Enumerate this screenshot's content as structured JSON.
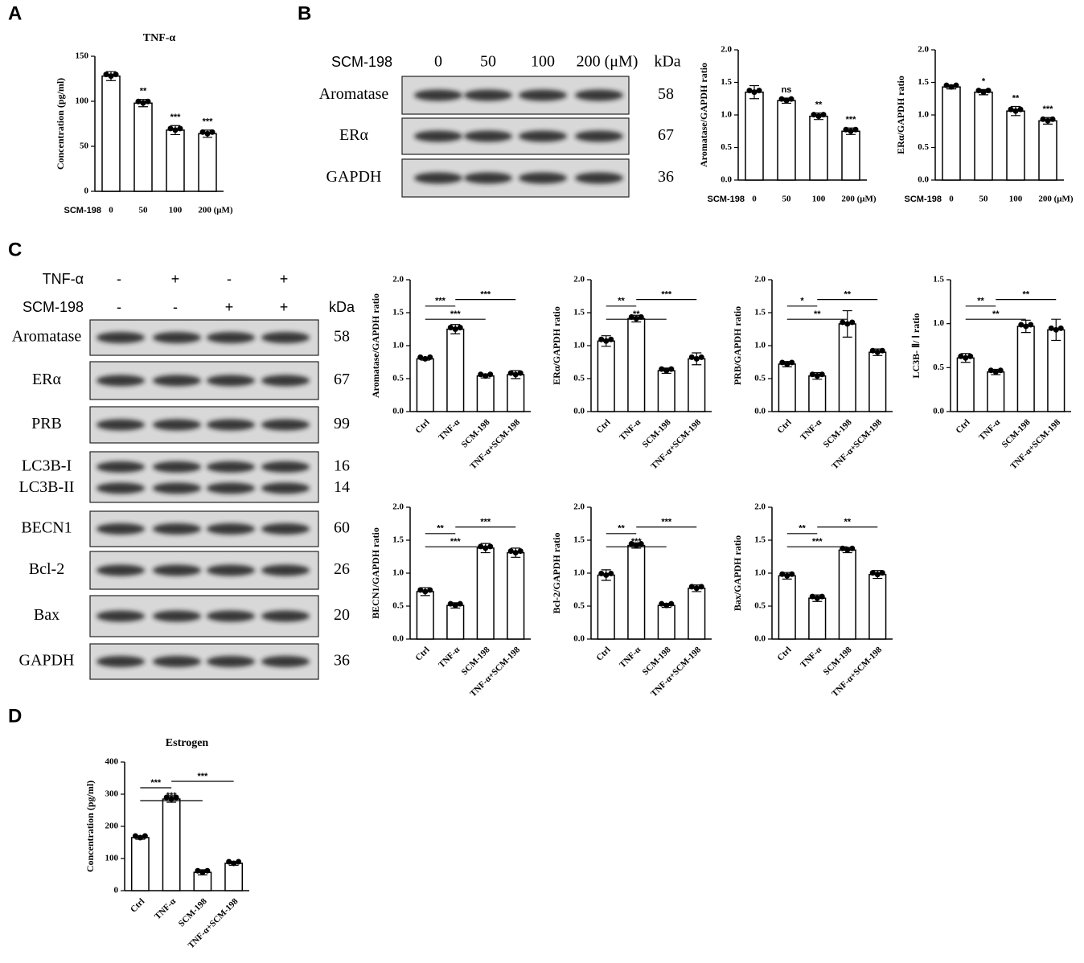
{
  "panels": [
    "A",
    "B",
    "C",
    "D"
  ],
  "blot_b": {
    "header_label": "SCM-198",
    "lanes": [
      "0",
      "50",
      "100",
      "200 (μM)"
    ],
    "kda_label": "kDa",
    "rows": [
      {
        "proteins": [
          "Aromatase"
        ],
        "kda": [
          58
        ]
      },
      {
        "proteins": [
          "ERα"
        ],
        "kda": [
          67
        ]
      },
      {
        "proteins": [
          "GAPDH"
        ],
        "kda": [
          36
        ]
      }
    ]
  },
  "blot_c": {
    "treatments": [
      {
        "name": "TNF-α",
        "signs": [
          "-",
          "+",
          "-",
          "+"
        ]
      },
      {
        "name": "SCM-198",
        "signs": [
          "-",
          "-",
          "+",
          "+"
        ]
      }
    ],
    "kda_label": "kDa",
    "rows": [
      {
        "proteins": [
          "Aromatase"
        ],
        "kda": [
          58
        ]
      },
      {
        "proteins": [
          "ERα"
        ],
        "kda": [
          67
        ]
      },
      {
        "proteins": [
          "PRB"
        ],
        "kda": [
          99
        ]
      },
      {
        "proteins": [
          "LC3B-I",
          "LC3B-II"
        ],
        "kda": [
          16,
          14
        ]
      },
      {
        "proteins": [
          "BECN1"
        ],
        "kda": [
          60
        ]
      },
      {
        "proteins": [
          "Bcl-2"
        ],
        "kda": [
          26
        ]
      },
      {
        "proteins": [
          "Bax"
        ],
        "kda": [
          20
        ]
      },
      {
        "proteins": [
          "GAPDH"
        ],
        "kda": [
          36
        ]
      }
    ]
  },
  "chart_data": [
    {
      "type": "bar",
      "title": "TNF-α",
      "ylabel": "Concentration (pg/ml)",
      "xlabel": "SCM-198",
      "categories": [
        "0",
        "50",
        "100",
        "200 (μM)"
      ],
      "values": [
        128,
        98,
        68,
        64
      ],
      "errors": [
        5,
        4,
        5,
        4
      ],
      "color": "#ffffff",
      "ylim": [
        0,
        150
      ],
      "yticks": [
        0,
        50,
        100,
        150
      ],
      "annotations": [
        null,
        "**",
        "***",
        "***"
      ]
    },
    {
      "type": "bar",
      "ylabel": "Aromatase/GAPDH ratio",
      "xlabel": "SCM-198",
      "categories": [
        "0",
        "50",
        "100",
        "200 (μM)"
      ],
      "values": [
        1.35,
        1.22,
        0.98,
        0.75
      ],
      "errors": [
        0.1,
        0.04,
        0.05,
        0.05
      ],
      "color": "#ffffff",
      "ylim": [
        0,
        2
      ],
      "yticks": [
        {
          "value": 0,
          "label": "0.0"
        },
        0.5,
        {
          "value": 1,
          "label": "1.0"
        },
        1.5,
        {
          "value": 2,
          "label": "2.0"
        }
      ],
      "annotations": [
        null,
        "ns",
        "**",
        "***"
      ]
    },
    {
      "type": "bar",
      "ylabel": "ERα/GAPDH ratio",
      "xlabel": "SCM-198",
      "categories": [
        "0",
        "50",
        "100",
        "200 (μM)"
      ],
      "values": [
        1.43,
        1.35,
        1.06,
        0.91
      ],
      "errors": [
        0.03,
        0.04,
        0.07,
        0.05
      ],
      "color": "#ffffff",
      "ylim": [
        0,
        2
      ],
      "yticks": [
        {
          "value": 0,
          "label": "0.0"
        },
        0.5,
        {
          "value": 1,
          "label": "1.0"
        },
        1.5,
        {
          "value": 2,
          "label": "2.0"
        }
      ],
      "annotations": [
        null,
        "*",
        "**",
        "***"
      ]
    },
    {
      "type": "bar",
      "ylabel": "Aromatase/GAPDH ratio",
      "categories": [
        "Ctrl",
        "TNF-α",
        "SCM-198",
        "TNF-α+SCM-198"
      ],
      "values": [
        0.8,
        1.25,
        0.54,
        0.56
      ],
      "errors": [
        0.02,
        0.07,
        0.03,
        0.06
      ],
      "color": "#ffffff",
      "ylim": [
        0,
        2
      ],
      "yticks": [
        {
          "value": 0,
          "label": "0.0"
        },
        0.5,
        {
          "value": 1,
          "label": "1.0"
        },
        1.5,
        {
          "value": 2,
          "label": "2.0"
        }
      ],
      "comparisons": [
        {
          "pair": [
            "Ctrl",
            "TNF-α"
          ],
          "label": "***"
        },
        {
          "pair": [
            "TNF-α",
            "TNF-α+SCM-198"
          ],
          "label": "***"
        },
        {
          "pair": [
            "Ctrl",
            "SCM-198"
          ],
          "label": "***"
        }
      ]
    },
    {
      "type": "bar",
      "ylabel": "ERα/GAPDH ratio",
      "categories": [
        "Ctrl",
        "TNF-α",
        "SCM-198",
        "TNF-α+SCM-198"
      ],
      "values": [
        1.07,
        1.41,
        0.62,
        0.8
      ],
      "errors": [
        0.08,
        0.05,
        0.04,
        0.09
      ],
      "color": "#ffffff",
      "ylim": [
        0,
        2
      ],
      "yticks": [
        {
          "value": 0,
          "label": "0.0"
        },
        0.5,
        {
          "value": 1,
          "label": "1.0"
        },
        1.5,
        {
          "value": 2,
          "label": "2.0"
        }
      ],
      "comparisons": [
        {
          "pair": [
            "Ctrl",
            "TNF-α"
          ],
          "label": "**"
        },
        {
          "pair": [
            "TNF-α",
            "TNF-α+SCM-198"
          ],
          "label": "***"
        },
        {
          "pair": [
            "Ctrl",
            "SCM-198"
          ],
          "label": "**"
        }
      ]
    },
    {
      "type": "bar",
      "ylabel": "PRB/GAPDH ratio",
      "categories": [
        "Ctrl",
        "TNF-α",
        "SCM-198",
        "TNF-α+SCM-198"
      ],
      "values": [
        0.72,
        0.54,
        1.33,
        0.9
      ],
      "errors": [
        0.04,
        0.05,
        0.2,
        0.05
      ],
      "color": "#ffffff",
      "ylim": [
        0,
        2
      ],
      "yticks": [
        {
          "value": 0,
          "label": "0.0"
        },
        0.5,
        {
          "value": 1,
          "label": "1.0"
        },
        1.5,
        {
          "value": 2,
          "label": "2.0"
        }
      ],
      "comparisons": [
        {
          "pair": [
            "Ctrl",
            "TNF-α"
          ],
          "label": "*"
        },
        {
          "pair": [
            "TNF-α",
            "TNF-α+SCM-198"
          ],
          "label": "**"
        },
        {
          "pair": [
            "Ctrl",
            "SCM-198"
          ],
          "label": "**"
        }
      ]
    },
    {
      "type": "bar",
      "ylabel": "LC3B- Ⅱ/ Ⅰ ratio",
      "categories": [
        "Ctrl",
        "TNF-α",
        "SCM-198",
        "TNF-α+SCM-198"
      ],
      "values": [
        0.61,
        0.45,
        0.97,
        0.93
      ],
      "errors": [
        0.05,
        0.03,
        0.07,
        0.12
      ],
      "color": "#ffffff",
      "ylim": [
        0,
        1.5
      ],
      "yticks": [
        {
          "value": 0,
          "label": "0.0"
        },
        0.5,
        {
          "value": 1,
          "label": "1.0"
        },
        1.5
      ],
      "comparisons": [
        {
          "pair": [
            "Ctrl",
            "TNF-α"
          ],
          "label": "**"
        },
        {
          "pair": [
            "TNF-α",
            "TNF-α+SCM-198"
          ],
          "label": "**"
        },
        {
          "pair": [
            "Ctrl",
            "SCM-198"
          ],
          "label": "**"
        }
      ]
    },
    {
      "type": "bar",
      "ylabel": "BECN1/GAPDH ratio",
      "categories": [
        "Ctrl",
        "TNF-α",
        "SCM-198",
        "TNF-α+SCM-198"
      ],
      "values": [
        0.72,
        0.51,
        1.38,
        1.31
      ],
      "errors": [
        0.06,
        0.04,
        0.07,
        0.07
      ],
      "color": "#ffffff",
      "ylim": [
        0,
        2
      ],
      "yticks": [
        {
          "value": 0,
          "label": "0.0"
        },
        0.5,
        {
          "value": 1,
          "label": "1.0"
        },
        1.5,
        {
          "value": 2,
          "label": "2.0"
        }
      ],
      "comparisons": [
        {
          "pair": [
            "Ctrl",
            "TNF-α"
          ],
          "label": "**"
        },
        {
          "pair": [
            "TNF-α",
            "TNF-α+SCM-198"
          ],
          "label": "***"
        },
        {
          "pair": [
            "Ctrl",
            "SCM-198"
          ],
          "label": "***"
        }
      ]
    },
    {
      "type": "bar",
      "ylabel": "Bcl-2/GAPDH ratio",
      "categories": [
        "Ctrl",
        "TNF-α",
        "SCM-198",
        "TNF-α+SCM-198"
      ],
      "values": [
        0.97,
        1.42,
        0.51,
        0.77
      ],
      "errors": [
        0.08,
        0.04,
        0.03,
        0.05
      ],
      "color": "#ffffff",
      "ylim": [
        0,
        2
      ],
      "yticks": [
        {
          "value": 0,
          "label": "0.0"
        },
        0.5,
        {
          "value": 1,
          "label": "1.0"
        },
        1.5,
        {
          "value": 2,
          "label": "2.0"
        }
      ],
      "comparisons": [
        {
          "pair": [
            "Ctrl",
            "TNF-α"
          ],
          "label": "**"
        },
        {
          "pair": [
            "TNF-α",
            "TNF-α+SCM-198"
          ],
          "label": "***"
        },
        {
          "pair": [
            "Ctrl",
            "SCM-198"
          ],
          "label": "***"
        }
      ]
    },
    {
      "type": "bar",
      "ylabel": "Bax/GAPDH ratio",
      "categories": [
        "Ctrl",
        "TNF-α",
        "SCM-198",
        "TNF-α+SCM-198"
      ],
      "values": [
        0.96,
        0.62,
        1.35,
        0.98
      ],
      "errors": [
        0.05,
        0.05,
        0.04,
        0.06
      ],
      "color": "#ffffff",
      "ylim": [
        0,
        2
      ],
      "yticks": [
        {
          "value": 0,
          "label": "0.0"
        },
        0.5,
        {
          "value": 1,
          "label": "1.0"
        },
        1.5,
        {
          "value": 2,
          "label": "2.0"
        }
      ],
      "comparisons": [
        {
          "pair": [
            "Ctrl",
            "TNF-α"
          ],
          "label": "**"
        },
        {
          "pair": [
            "TNF-α",
            "TNF-α+SCM-198"
          ],
          "label": "**"
        },
        {
          "pair": [
            "Ctrl",
            "SCM-198"
          ],
          "label": "***"
        }
      ]
    },
    {
      "type": "bar",
      "title": "Estrogen",
      "ylabel": "Concentration (pg/ml)",
      "categories": [
        "Ctrl",
        "TNF-α",
        "SCM-198",
        "TNF-α+SCM-198"
      ],
      "values": [
        165,
        285,
        57,
        85
      ],
      "errors": [
        5,
        10,
        8,
        6
      ],
      "color": "#ffffff",
      "ylim": [
        0,
        400
      ],
      "yticks": [
        0,
        100,
        200,
        300,
        400
      ],
      "comparisons": [
        {
          "pair": [
            "Ctrl",
            "TNF-α"
          ],
          "label": "***"
        },
        {
          "pair": [
            "TNF-α",
            "TNF-α+SCM-198"
          ],
          "label": "***"
        },
        {
          "pair": [
            "Ctrl",
            "SCM-198"
          ],
          "label": "***"
        }
      ]
    }
  ]
}
